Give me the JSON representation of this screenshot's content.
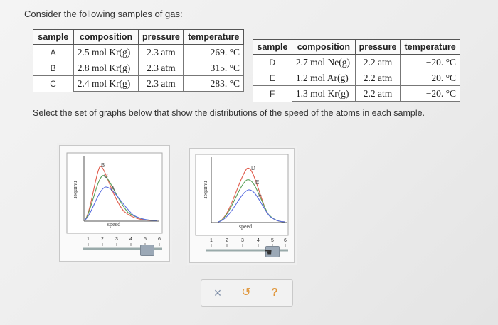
{
  "question": {
    "intro": "Consider the following samples of gas:",
    "instruction": "Select the set of graphs below that show the distributions of the speed of the atoms in each sample."
  },
  "table_left": {
    "headers": [
      "sample",
      "composition",
      "pressure",
      "temperature"
    ],
    "rows": [
      {
        "sample": "A",
        "composition": "2.5 mol Kr(g)",
        "pressure": "2.3 atm",
        "temperature": "269. °C"
      },
      {
        "sample": "B",
        "composition": "2.8 mol Kr(g)",
        "pressure": "2.3 atm",
        "temperature": "315. °C"
      },
      {
        "sample": "C",
        "composition": "2.4 mol Kr(g)",
        "pressure": "2.3 atm",
        "temperature": "283. °C"
      }
    ]
  },
  "table_right": {
    "headers": [
      "sample",
      "composition",
      "pressure",
      "temperature"
    ],
    "rows": [
      {
        "sample": "D",
        "composition": "2.7 mol Ne(g)",
        "pressure": "2.2 atm",
        "temperature": "−20. °C"
      },
      {
        "sample": "E",
        "composition": "1.2 mol Ar(g)",
        "pressure": "2.2 atm",
        "temperature": "−20. °C"
      },
      {
        "sample": "F",
        "composition": "1.3 mol Kr(g)",
        "pressure": "2.2 atm",
        "temperature": "−20. °C"
      }
    ]
  },
  "graphs": [
    {
      "ylabel": "number",
      "xlabel": "speed",
      "curve_labels": [
        "B",
        "C",
        "A"
      ],
      "slider_ticks": [
        "1",
        "2",
        "3",
        "4",
        "5",
        "6"
      ],
      "slider_value": 5
    },
    {
      "ylabel": "number",
      "xlabel": "speed",
      "curve_labels": [
        "D",
        "E",
        "F"
      ],
      "slider_ticks": [
        "1",
        "2",
        "3",
        "4",
        "5",
        "6"
      ],
      "slider_value": 5
    }
  ],
  "actions": {
    "clear_icon": "×",
    "undo_icon": "↺",
    "help_icon": "?"
  },
  "colors": {
    "curve_red": "#e05a4a",
    "curve_green": "#5aa05a",
    "curve_blue": "#5a6ee0",
    "action_clear": "#7f8fa8",
    "action_undo": "#e0963a",
    "action_help": "#e0963a"
  }
}
